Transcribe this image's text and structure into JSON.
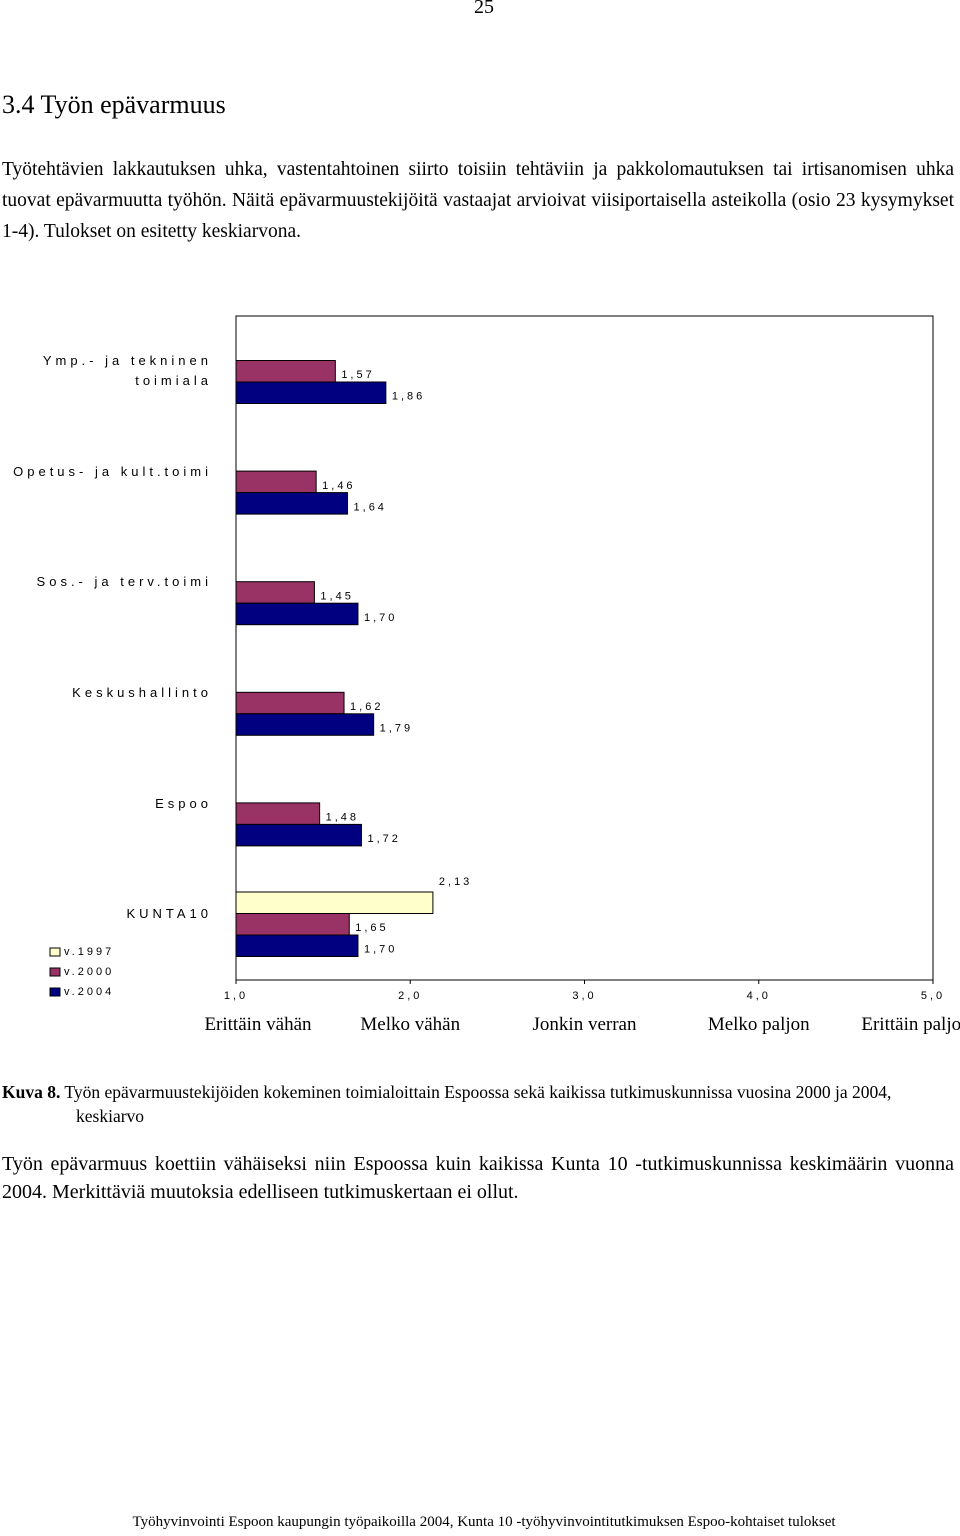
{
  "page_number": "25",
  "heading": "3.4 Työn epävarmuus",
  "intro": "Työtehtävien lakkautuksen uhka, vastentahtoinen siirto toisiin tehtäviin ja pakkolomautuksen tai irtisanomisen uhka tuovat epävarmuutta työhön. Näitä epävarmuustekijöitä vastaajat arvioivat viisiportaisella asteikolla (osio 23 kysymykset 1-4). Tulokset on esitetty keskiarvona.",
  "chart_data": {
    "type": "barh",
    "categories": [
      "Ymp.- ja tekninen toimiala",
      "Opetus- ja kult.toimi",
      "Sos.- ja terv.toimi",
      "Keskushallinto",
      "Espoo",
      "KUNTA10"
    ],
    "series": [
      {
        "name": "v.1997",
        "color": "#ffffcc",
        "values": [
          null,
          null,
          null,
          null,
          null,
          2.13
        ],
        "value_labels": [
          null,
          null,
          null,
          null,
          null,
          "2,13"
        ]
      },
      {
        "name": "v.2000",
        "color": "#993366",
        "values": [
          1.57,
          1.46,
          1.45,
          1.62,
          1.48,
          1.65
        ],
        "value_labels": [
          "1,57",
          "1,46",
          "1,45",
          "1,62",
          "1,48",
          "1,65"
        ]
      },
      {
        "name": "v.2004",
        "color": "#000080",
        "values": [
          1.86,
          1.64,
          1.7,
          1.79,
          1.72,
          1.7
        ],
        "value_labels": [
          "1,86",
          "1,64",
          "1,70",
          "1,79",
          "1,72",
          "1,70"
        ]
      }
    ],
    "xlim": [
      1,
      5
    ],
    "xticks": [
      {
        "value": 1,
        "label": "1,0"
      },
      {
        "value": 2,
        "label": "2,0"
      },
      {
        "value": 3,
        "label": "3,0"
      },
      {
        "value": 4,
        "label": "4,0"
      },
      {
        "value": 5,
        "label": "5,0"
      }
    ],
    "scale_labels": [
      "Erittäin vähän",
      "Melko vähän",
      "Jonkin verran",
      "Melko paljon",
      "Erittäin paljon"
    ],
    "legend": "bottom-left"
  },
  "caption": {
    "label": "Kuva 8.",
    "text": "Työn epävarmuustekijöiden kokeminen toimialoittain Espoossa sekä kaikissa tutkimuskunnissa vuosina 2000 ja 2004, keskiarvo"
  },
  "conclusion": "Työn epävarmuus koettiin vähäiseksi niin Espoossa kuin kaikissa Kunta 10 -tutkimuskunnissa keskimäärin vuonna 2004. Merkittäviä muutoksia edelliseen tutkimuskertaan ei ollut.",
  "footer": "Työhyvinvointi Espoon kaupungin työpaikoilla 2004, Kunta 10 -työhyvinvointitutkimuksen Espoo-kohtaiset tulokset"
}
